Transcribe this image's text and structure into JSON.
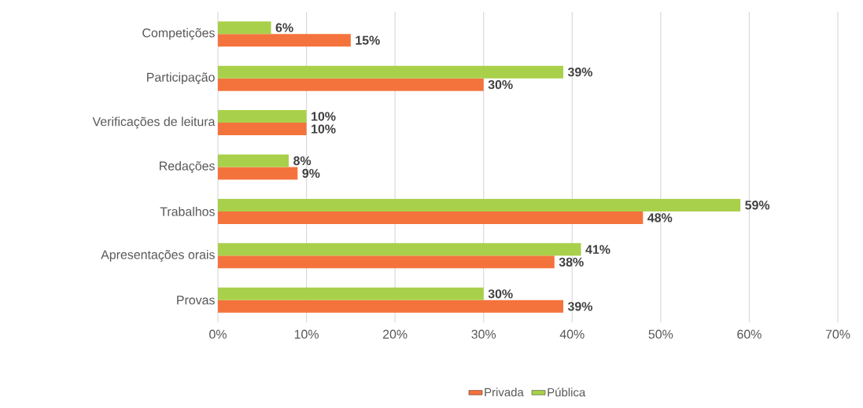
{
  "chart_data": {
    "type": "bar",
    "orientation": "horizontal",
    "categories": [
      "Competições",
      "Participação",
      "Verificações de leitura",
      "Redações",
      "Trabalhos",
      "Apresentações orais",
      "Provas"
    ],
    "series": [
      {
        "name": "Privada",
        "color": "#f4733c",
        "values": [
          15,
          30,
          10,
          9,
          48,
          38,
          39
        ],
        "value_labels": [
          "15%",
          "30%",
          "10%",
          "9%",
          "48%",
          "38%",
          "39%"
        ]
      },
      {
        "name": "Pública",
        "color": "#a9d04a",
        "values": [
          6,
          39,
          10,
          8,
          59,
          41,
          30
        ],
        "value_labels": [
          "6%",
          "39%",
          "10%",
          "8%",
          "59%",
          "41%",
          "30%"
        ]
      }
    ],
    "xlim": [
      0,
      70
    ],
    "xticks": [
      {
        "value": 0,
        "label": "0%"
      },
      {
        "value": 10,
        "label": "10%"
      },
      {
        "value": 20,
        "label": "20%"
      },
      {
        "value": 30,
        "label": "30%"
      },
      {
        "value": 40,
        "label": "40%"
      },
      {
        "value": 50,
        "label": "50%"
      },
      {
        "value": 60,
        "label": "60%"
      },
      {
        "value": 70,
        "label": "70%"
      }
    ],
    "grid": "x",
    "legend": "bottom"
  }
}
